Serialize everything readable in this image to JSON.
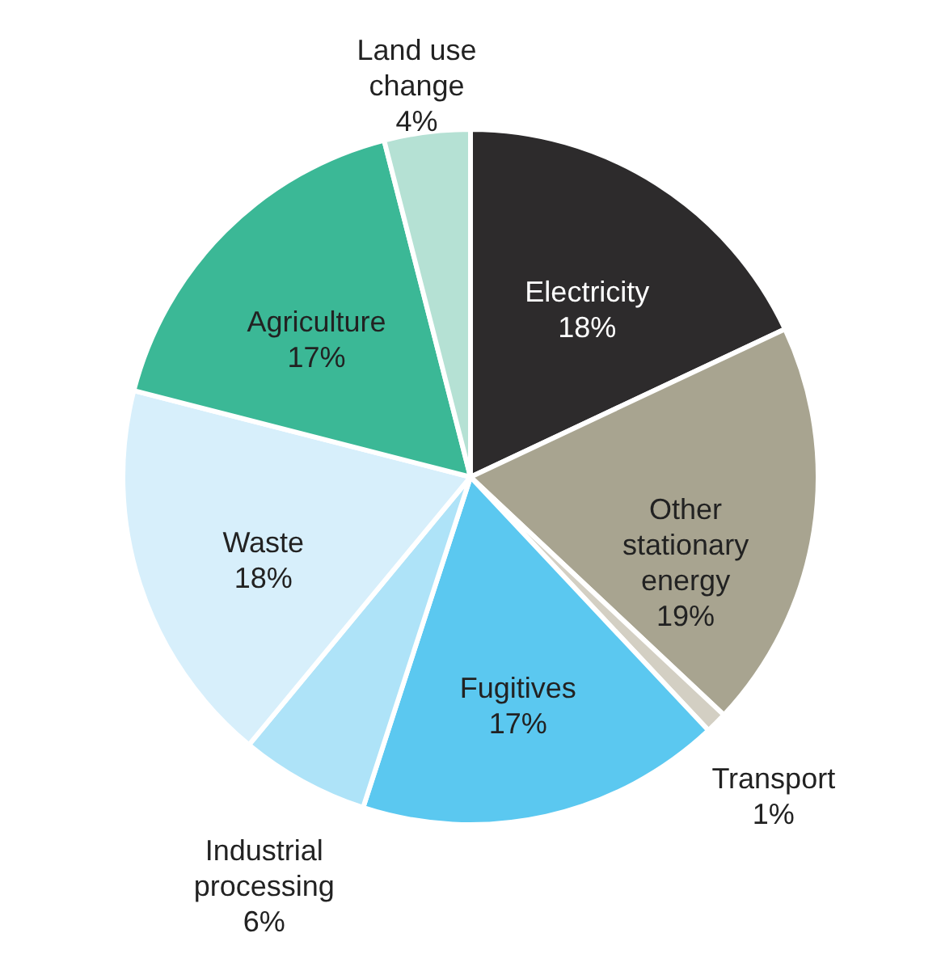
{
  "chart_data": {
    "type": "pie",
    "categories": [
      "Electricity",
      "Other stationary energy",
      "Transport",
      "Fugitives",
      "Industrial processing",
      "Waste",
      "Agriculture",
      "Land use change"
    ],
    "values": [
      18,
      19,
      1,
      17,
      6,
      18,
      17,
      4
    ],
    "colors": [
      "#2d2b2c",
      "#a8a490",
      "#d3cfc3",
      "#5bc8f0",
      "#aee3f8",
      "#d7effb",
      "#3bb896",
      "#b5e1d4"
    ],
    "value_labels": [
      "18%",
      "19%",
      "1%",
      "17%",
      "6%",
      "18%",
      "17%",
      "4%"
    ]
  }
}
